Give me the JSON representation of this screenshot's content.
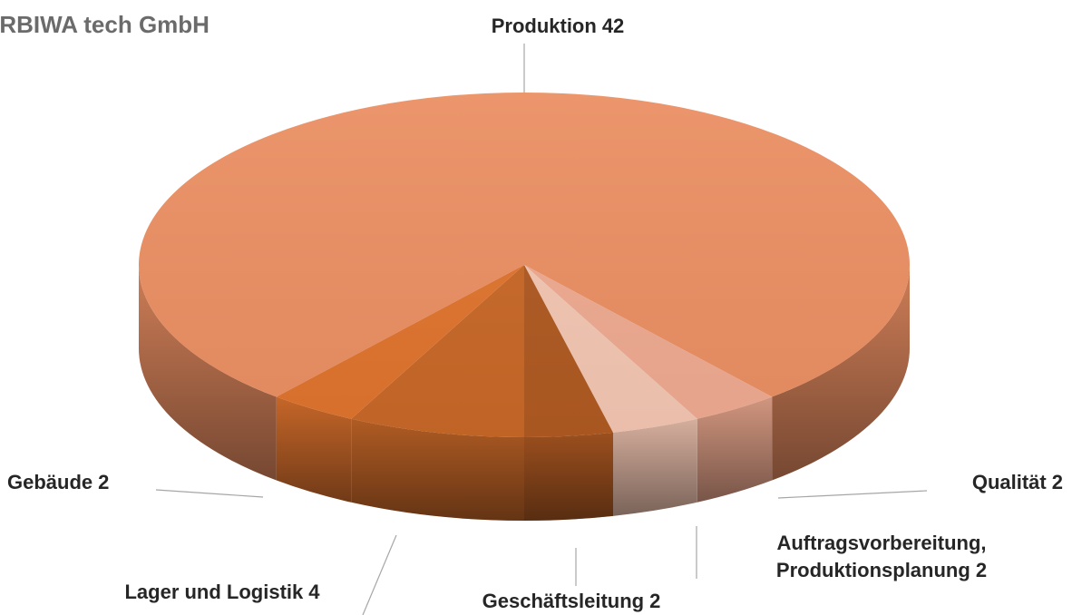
{
  "chart_data": {
    "type": "pie3d",
    "title": "ERBIWA tech GmbH",
    "categories": [
      "Produktion",
      "Qualität",
      "Auftragsvorbereitung, Produktionsplanung",
      "Geschäftsleitung",
      "Lager und Logistik",
      "Gebäude"
    ],
    "values": [
      42,
      2,
      2,
      2,
      4,
      2
    ],
    "colors": [
      "#eb8f63",
      "#eeaa90",
      "#f3c6b2",
      "#b05a22",
      "#c86828",
      "#e0742e"
    ]
  }
}
